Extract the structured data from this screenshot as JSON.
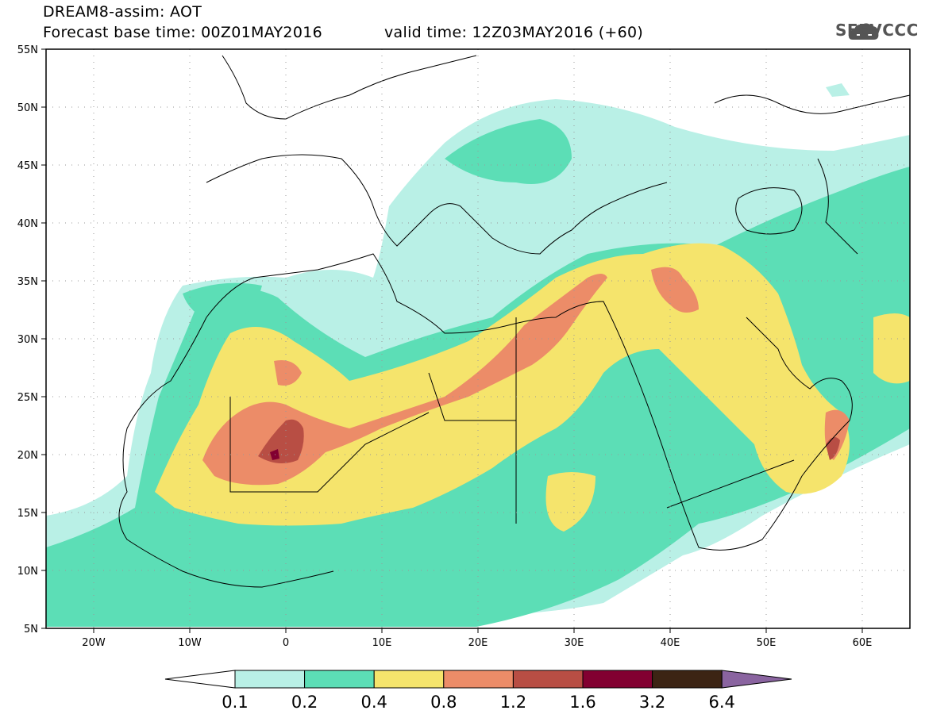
{
  "header": {
    "line1": "DREAM8-assim: AOT",
    "line2_left": "Forecast base time: 00Z01MAY2016",
    "line2_right": "valid time: 12Z03MAY2016 (+60)"
  },
  "logo": {
    "text": "SEEVCCC",
    "icon": "cloud-logo-icon"
  },
  "axes": {
    "lat_labels": [
      "55N",
      "50N",
      "45N",
      "40N",
      "35N",
      "30N",
      "25N",
      "20N",
      "15N",
      "10N",
      "5N"
    ],
    "lon_labels": [
      "20W",
      "10W",
      "0",
      "10E",
      "20E",
      "30E",
      "40E",
      "50E",
      "60E"
    ],
    "lat_range": [
      5,
      55
    ],
    "lon_range": [
      -25,
      65
    ]
  },
  "colorbar": {
    "labels": [
      "0.1",
      "0.2",
      "0.4",
      "0.8",
      "1.2",
      "1.6",
      "3.2",
      "6.4"
    ],
    "colors": [
      "#ffffff",
      "#b9f0e6",
      "#5cdeb6",
      "#f5e46c",
      "#ec8c68",
      "#b84e44",
      "#820031",
      "#3c2414",
      "#8a64a0"
    ]
  }
}
